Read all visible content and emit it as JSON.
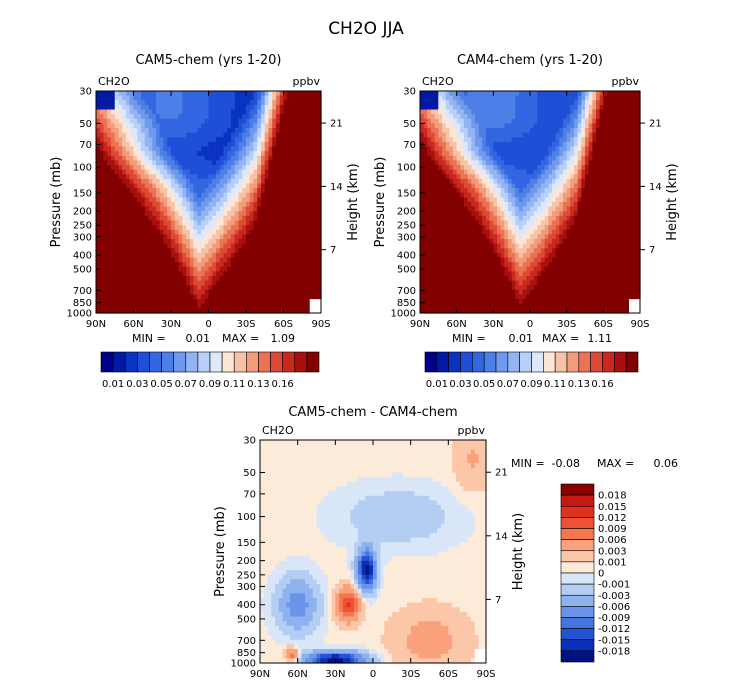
{
  "figure": {
    "title": "CH2O JJA"
  },
  "chart_data": [
    {
      "type": "heatmap",
      "title": "CAM5-chem (yrs 1-20)",
      "variable": "CH2O",
      "units": "ppbv",
      "ylabel": "Pressure (mb)",
      "y2label": "Height (km)",
      "x_ticks": [
        "90N",
        "60N",
        "30N",
        "0",
        "30S",
        "60S",
        "90S"
      ],
      "y_ticks": [
        "30",
        "50",
        "70",
        "100",
        "150",
        "200",
        "250",
        "300",
        "400",
        "500",
        "700",
        "850",
        "1000"
      ],
      "y2_ticks": [
        "21",
        "14",
        "7"
      ],
      "stats": {
        "min_label": "MIN =",
        "min_value": "0.01",
        "max_label": "MAX =",
        "max_value": "1.09"
      },
      "colorbar_labels": [
        "0.01",
        "0.03",
        "0.05",
        "0.07",
        "0.09",
        "0.11",
        "0.13",
        "0.16"
      ],
      "colors": [
        "#00008b",
        "#001aa6",
        "#0a33c2",
        "#1f4fd6",
        "#3366e0",
        "#4d7fe6",
        "#6e99ec",
        "#92b4f2",
        "#b8d0f7",
        "#dde9fb",
        "#fde6d6",
        "#f7c3a6",
        "#f29c7b",
        "#ea7255",
        "#dd4a35",
        "#c8281e",
        "#a8100f",
        "#820000"
      ]
    },
    {
      "type": "heatmap",
      "title": "CAM4-chem (yrs 1-20)",
      "variable": "CH2O",
      "units": "ppbv",
      "ylabel": "Pressure (mb)",
      "y2label": "Height (km)",
      "x_ticks": [
        "90N",
        "60N",
        "30N",
        "0",
        "30S",
        "60S",
        "90S"
      ],
      "y_ticks": [
        "30",
        "50",
        "70",
        "100",
        "150",
        "200",
        "250",
        "300",
        "400",
        "500",
        "700",
        "850",
        "1000"
      ],
      "y2_ticks": [
        "21",
        "14",
        "7"
      ],
      "stats": {
        "min_label": "MIN =",
        "min_value": "0.01",
        "max_label": "MAX =",
        "max_value": "1.11"
      },
      "colorbar_labels": [
        "0.01",
        "0.03",
        "0.05",
        "0.07",
        "0.09",
        "0.11",
        "0.13",
        "0.16"
      ],
      "colors": [
        "#00008b",
        "#001aa6",
        "#0a33c2",
        "#1f4fd6",
        "#3366e0",
        "#4d7fe6",
        "#6e99ec",
        "#92b4f2",
        "#b8d0f7",
        "#dde9fb",
        "#fde6d6",
        "#f7c3a6",
        "#f29c7b",
        "#ea7255",
        "#dd4a35",
        "#c8281e",
        "#a8100f",
        "#820000"
      ]
    },
    {
      "type": "heatmap",
      "title": "CAM5-chem - CAM4-chem",
      "variable": "CH2O",
      "units": "ppbv",
      "ylabel": "Pressure (mb)",
      "y2label": "Height (km)",
      "x_ticks": [
        "90N",
        "60N",
        "30N",
        "0",
        "30S",
        "60S",
        "90S"
      ],
      "y_ticks": [
        "30",
        "50",
        "70",
        "100",
        "150",
        "200",
        "250",
        "300",
        "400",
        "500",
        "700",
        "850",
        "1000"
      ],
      "y2_ticks": [
        "21",
        "14",
        "7"
      ],
      "stats": {
        "min_label": "MIN =",
        "min_value": "-0.08",
        "max_label": "MAX =",
        "max_value": "0.06"
      },
      "colorbar_labels": [
        "0.018",
        "0.015",
        "0.012",
        "0.009",
        "0.006",
        "0.003",
        "0.001",
        "0",
        "-0.001",
        "-0.003",
        "-0.006",
        "-0.009",
        "-0.012",
        "-0.015",
        "-0.018"
      ],
      "colors": [
        "#8b0000",
        "#c41a12",
        "#e0301e",
        "#ee5236",
        "#f5774f",
        "#f9a07c",
        "#fcc6a8",
        "#fdebda",
        "#d9e6f8",
        "#b3cdf3",
        "#8eb2ee",
        "#6a94e8",
        "#4574e0",
        "#2452d2",
        "#0a2fb8",
        "#00127f"
      ]
    }
  ]
}
